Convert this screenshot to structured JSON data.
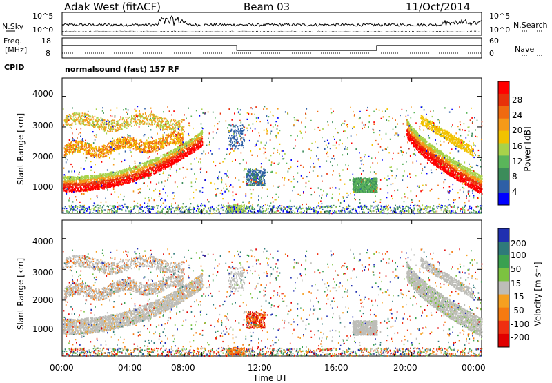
{
  "header": {
    "radar": "Adak West (fitACF)",
    "beam": "Beam 03",
    "date": "11/Oct/2014"
  },
  "nsky_panel": {
    "left_label": "N.Sky",
    "left_ticks": [
      "10^5",
      "10^0"
    ],
    "right_label": "N.Search",
    "right_ticks": [
      "10^5",
      "10^0"
    ]
  },
  "freq_panel": {
    "left_label_line1": "Freq.",
    "left_label_line2": "[MHz]",
    "left_ticks": [
      "18",
      "8"
    ],
    "right_label": "Nave",
    "right_ticks": [
      "60",
      "0"
    ],
    "cpid_label": "CPID",
    "cpid_text": "normalsound (fast) 157 RF"
  },
  "colors": {
    "power": [
      "#0000ff",
      "#2e5fa6",
      "#3c8c5a",
      "#5ab55a",
      "#a8d24a",
      "#f2c200",
      "#f59a18",
      "#f06a10",
      "#e8300a",
      "#ff0000"
    ],
    "velocity": [
      "#e00000",
      "#f03010",
      "#f57a10",
      "#f5a020",
      "#bdbdb8",
      "#7cc240",
      "#3aa050",
      "#2f7a7a",
      "#2030b0"
    ]
  },
  "chart_data": [
    {
      "type": "heatmap",
      "name": "power",
      "ylabel": "Slant Range [km]",
      "yticks": [
        "4000",
        "3000",
        "2000",
        "1000"
      ],
      "ylim": [
        180,
        4600
      ],
      "xlim": [
        0,
        24
      ],
      "xticks_hours": [
        0,
        4,
        8,
        12,
        16,
        20,
        24
      ],
      "colorbar_label": "Power [dB]",
      "colorbar_ticks": [
        "28",
        "24",
        "20",
        "16",
        "12",
        "8",
        "4"
      ],
      "colorbar_range": [
        0,
        30
      ],
      "regions": [
        {
          "t": [
            0.05,
            8.0
          ],
          "r": [
            900,
            1700
          ],
          "level": "strong",
          "note": "0-8 UT band rising 1000-2600 km"
        },
        {
          "t": [
            0.1,
            6.9
          ],
          "r": [
            2000,
            3550
          ],
          "level": "medium",
          "note": "upper curved bands"
        },
        {
          "t": [
            9.5,
            10.4
          ],
          "r": [
            2300,
            3100
          ],
          "level": "weak"
        },
        {
          "t": [
            10.5,
            11.6
          ],
          "r": [
            1100,
            1650
          ],
          "level": "weak"
        },
        {
          "t": [
            16.6,
            18.0
          ],
          "r": [
            880,
            1350
          ],
          "level": "medium"
        },
        {
          "t": [
            9.4,
            10.4
          ],
          "r": [
            250,
            480
          ],
          "level": "medium"
        },
        {
          "t": [
            19.7,
            24.0
          ],
          "r": [
            950,
            3000
          ],
          "level": "strong",
          "note": "20-24 UT descending band"
        }
      ]
    },
    {
      "type": "heatmap",
      "name": "velocity",
      "ylabel": "Slant Range [km]",
      "yticks": [
        "4000",
        "3000",
        "2000",
        "1000"
      ],
      "ylim": [
        180,
        4600
      ],
      "xlim": [
        0,
        24
      ],
      "colorbar_label": "Velocity [m s⁻¹]",
      "colorbar_ticks": [
        "200",
        "100",
        "50",
        "15",
        "-15",
        "-50",
        "-100",
        "-200"
      ],
      "colorbar_range": [
        -250,
        250
      ],
      "regions": [
        {
          "t": [
            0.05,
            8.0
          ],
          "r": [
            900,
            2600
          ],
          "level": "ground-scatter"
        },
        {
          "t": [
            10.5,
            11.6
          ],
          "r": [
            1300,
            1600
          ],
          "level": "negative"
        },
        {
          "t": [
            16.6,
            18.0
          ],
          "r": [
            880,
            1350
          ],
          "level": "ground-scatter"
        },
        {
          "t": [
            9.4,
            10.4
          ],
          "r": [
            250,
            480
          ],
          "level": "negative-moderate"
        },
        {
          "t": [
            19.7,
            24.0
          ],
          "r": [
            950,
            3000
          ],
          "level": "ground-scatter"
        }
      ]
    }
  ],
  "xaxis": {
    "label": "Time UT",
    "ticks": [
      "00:00",
      "04:00",
      "08:00",
      "12:00",
      "16:00",
      "20:00",
      "00:00"
    ]
  }
}
